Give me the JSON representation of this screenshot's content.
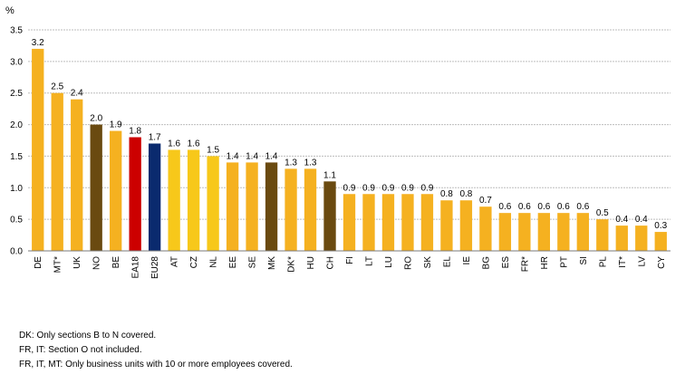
{
  "chart_data": {
    "type": "bar",
    "ylabel": "%",
    "ylim": [
      0,
      3.5
    ],
    "yticks": [
      "0.0",
      "0.5",
      "1.0",
      "1.5",
      "2.0",
      "2.5",
      "3.0",
      "3.5"
    ],
    "grid": true,
    "categories": [
      "DE",
      "MT*",
      "UK",
      "NO",
      "BE",
      "EA18",
      "EU28",
      "AT",
      "CZ",
      "NL",
      "EE",
      "SE",
      "MK",
      "DK*",
      "HU",
      "CH",
      "FI",
      "LT",
      "LU",
      "RO",
      "SK",
      "EL",
      "IE",
      "BG",
      "ES",
      "FR*",
      "HR",
      "PT",
      "SI",
      "PL",
      "IT*",
      "LV",
      "CY"
    ],
    "values": [
      3.2,
      2.5,
      2.4,
      2.0,
      1.9,
      1.8,
      1.7,
      1.6,
      1.6,
      1.5,
      1.4,
      1.4,
      1.4,
      1.3,
      1.3,
      1.1,
      0.9,
      0.9,
      0.9,
      0.9,
      0.9,
      0.8,
      0.8,
      0.7,
      0.6,
      0.6,
      0.6,
      0.6,
      0.6,
      0.5,
      0.4,
      0.4,
      0.3
    ],
    "value_labels": [
      "3.2",
      "2.5",
      "2.4",
      "2.0",
      "1.9",
      "1.8",
      "1.7",
      "1.6",
      "1.6",
      "1.5",
      "1.4",
      "1.4",
      "1.4",
      "1.3",
      "1.3",
      "1.1",
      "0.9",
      "0.9",
      "0.9",
      "0.9",
      "0.9",
      "0.8",
      "0.8",
      "0.7",
      "0.6",
      "0.6",
      "0.6",
      "0.6",
      "0.6",
      "0.5",
      "0.4",
      "0.4",
      "0.3"
    ],
    "bar_colors": [
      "#F5B120",
      "#F5B120",
      "#F5B120",
      "#6A4A10",
      "#F5B120",
      "#CC0000",
      "#0A2A6E",
      "#F7C81A",
      "#F7C81A",
      "#F7C81A",
      "#F5B120",
      "#F5B120",
      "#6A4A10",
      "#F5B120",
      "#F5B120",
      "#6A4A10",
      "#F5B120",
      "#F5B120",
      "#F5B120",
      "#F5B120",
      "#F5B120",
      "#F5B120",
      "#F5B120",
      "#F5B120",
      "#F5B120",
      "#F5B120",
      "#F5B120",
      "#F5B120",
      "#F5B120",
      "#F5B120",
      "#F5B120",
      "#F5B120",
      "#F5B120"
    ]
  },
  "footnotes": [
    "DK: Only sections B to N covered.",
    "FR, IT: Section O not included.",
    "FR, IT, MT: Only business units with 10 or more employees covered."
  ]
}
